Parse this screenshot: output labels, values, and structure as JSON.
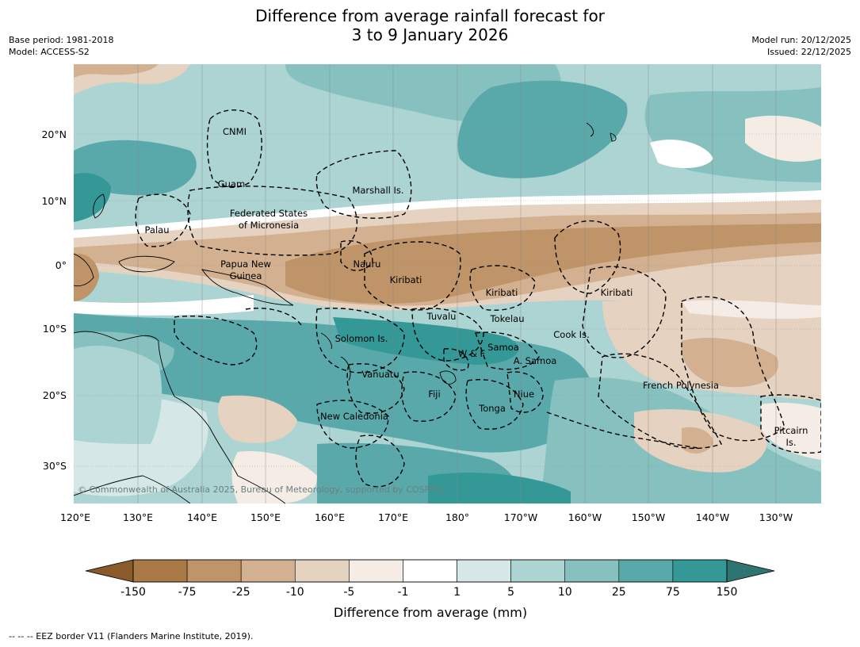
{
  "header": {
    "title_line1": "Difference from average rainfall forecast for",
    "title_line2": "3 to 9 January 2026",
    "base_period": "Base period: 1981-2018",
    "model": "Model: ACCESS-S2",
    "model_run": "Model run: 20/12/2025",
    "issued": "Issued: 22/12/2025"
  },
  "map": {
    "lon_ticks": [
      "120°E",
      "130°E",
      "140°E",
      "150°E",
      "160°E",
      "170°E",
      "180°",
      "170°W",
      "160°W",
      "150°W",
      "140°W",
      "130°W"
    ],
    "lat_ticks": [
      "20°N",
      "10°N",
      "0°",
      "10°S",
      "20°S",
      "30°S"
    ],
    "copyright": "© Commonwealth of Australia 2025, Bureau of Meteorology, supported by COSPPac",
    "labels": [
      "CNMI",
      "Guam",
      "Marshall Is.",
      "Federated States",
      "of Micronesia",
      "Palau",
      "Papua New",
      "Guinea",
      "Nauru",
      "Kiribati",
      "Kiribati",
      "Kiribati",
      "Tuvalu",
      "Tokelau",
      "Solomon Is.",
      "Samoa",
      "W & F",
      "A. Samoa",
      "Cook Is.",
      "Vanuatu",
      "Fiji",
      "Niue",
      "Tonga",
      "French Polynesia",
      "New Caledonia",
      "Pitcairn",
      "Is."
    ]
  },
  "legend": {
    "ticks": [
      "-150",
      "-75",
      "-25",
      "-10",
      "-5",
      "-1",
      "1",
      "5",
      "10",
      "25",
      "75",
      "150"
    ],
    "colors": [
      "#a97a46",
      "#be9468",
      "#d3b08f",
      "#e5d2c0",
      "#f4ece5",
      "#ffffff",
      "#d5e8e7",
      "#acd4d3",
      "#86c1c0",
      "#5aa9aa",
      "#339896"
    ],
    "extend_low_color": "#8b5a2b",
    "extend_high_color": "#2e7572",
    "label": "Difference from average (mm)"
  },
  "footer": {
    "eez_note": "--  --  -- EEZ border V11 (Flanders Marine Institute, 2019)."
  }
}
